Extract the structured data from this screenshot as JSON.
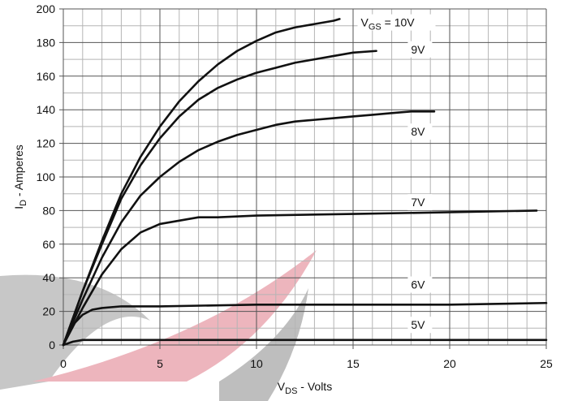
{
  "chart_data": {
    "type": "line",
    "xlabel": [
      "V",
      "DS",
      " - Volts"
    ],
    "ylabel": [
      "I",
      "D",
      " - Amperes"
    ],
    "xlim": [
      0,
      25
    ],
    "xticks": [
      0,
      5,
      10,
      15,
      20,
      25
    ],
    "ylim": [
      0,
      200
    ],
    "yticks": [
      0,
      20,
      40,
      60,
      80,
      100,
      120,
      140,
      160,
      180,
      200
    ],
    "grid": true,
    "color": "#111111",
    "series": [
      {
        "name": [
          "V",
          "GS",
          " = 10V"
        ],
        "x": [
          0,
          1,
          2,
          3,
          4,
          5,
          6,
          7,
          8,
          9,
          10,
          11,
          12,
          13,
          14,
          14.3
        ],
        "values": [
          0,
          32,
          62,
          90,
          112,
          130,
          145,
          157,
          167,
          175,
          181,
          186,
          189,
          191,
          193,
          194
        ]
      },
      {
        "name": "9V",
        "x": [
          0,
          1,
          2,
          3,
          4,
          5,
          6,
          7,
          8,
          9,
          10,
          11,
          12,
          13,
          14,
          15,
          16.2
        ],
        "values": [
          0,
          32,
          60,
          87,
          107,
          123,
          136,
          146,
          153,
          158,
          162,
          165,
          168,
          170,
          172,
          174,
          175
        ]
      },
      {
        "name": "8V",
        "x": [
          0,
          1,
          2,
          3,
          4,
          5,
          6,
          7,
          8,
          9,
          10,
          11,
          12,
          13,
          14,
          15,
          16,
          17,
          18,
          19.2
        ],
        "values": [
          0,
          27,
          52,
          73,
          89,
          100,
          109,
          116,
          121,
          125,
          128,
          131,
          133,
          134,
          135,
          136,
          137,
          138,
          139,
          139
        ]
      },
      {
        "name": "7V",
        "x": [
          0,
          1,
          2,
          3,
          4,
          5,
          6,
          7,
          8,
          10,
          15,
          20,
          24.5
        ],
        "values": [
          0,
          22,
          42,
          57,
          67,
          72,
          74,
          76,
          76,
          77,
          78,
          79,
          80
        ]
      },
      {
        "name": "6V",
        "x": [
          0,
          0.5,
          1,
          1.5,
          2,
          3,
          5,
          10,
          15,
          20,
          25
        ],
        "values": [
          0,
          12,
          18,
          21,
          22,
          23,
          23,
          24,
          24,
          24,
          25
        ]
      },
      {
        "name": "5V",
        "x": [
          0,
          0.5,
          1,
          2,
          25
        ],
        "values": [
          0,
          2,
          3,
          3,
          3
        ]
      }
    ]
  }
}
